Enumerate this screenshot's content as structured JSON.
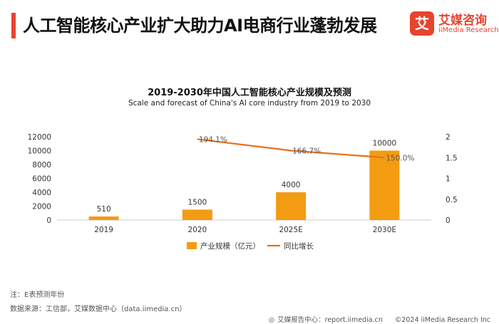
{
  "header": {
    "title": "人工智能核心产业扩大助力AI电商行业蓬勃发展",
    "logo_mark": "艾",
    "logo_cn": "艾媒咨询",
    "logo_en": "iiMedia Research"
  },
  "chart_data": {
    "type": "bar",
    "title": "2019-2030年中国人工智能核心产业规模及预测",
    "subtitle": "Scale and forecast of China's AI core industry from 2019 to 2030",
    "categories": [
      "2019",
      "2020",
      "2025E",
      "2030E"
    ],
    "series": [
      {
        "name": "产业规模（亿元）",
        "kind": "bar",
        "axis": "left",
        "values": [
          510,
          1500,
          4000,
          10000
        ],
        "labels": [
          "510",
          "1500",
          "4000",
          "10000"
        ]
      },
      {
        "name": "同比增长",
        "kind": "line",
        "axis": "right",
        "values": [
          null,
          1.941,
          1.667,
          1.5
        ],
        "labels": [
          "",
          "194.1%",
          "166.7%",
          "150.0%"
        ]
      }
    ],
    "ylim_left": [
      0,
      12000
    ],
    "yticks_left": [
      "0",
      "2000",
      "4000",
      "6000",
      "8000",
      "10000",
      "12000"
    ],
    "ylim_right": [
      0,
      2
    ],
    "yticks_right": [
      "0",
      "0.5",
      "1",
      "1.5",
      "2"
    ],
    "legend_position": "bottom",
    "colors": {
      "bar": "#f39c12",
      "line": "#e8711a"
    }
  },
  "notes": {
    "note": "注：E表预测年份",
    "source": "数据来源：工信部，艾媒数据中心（data.iimedia.cn）"
  },
  "footer": {
    "report_label": "艾媒报告中心：report.iimedia.cn",
    "copyright": "©2024  iiMedia Research  Inc"
  }
}
